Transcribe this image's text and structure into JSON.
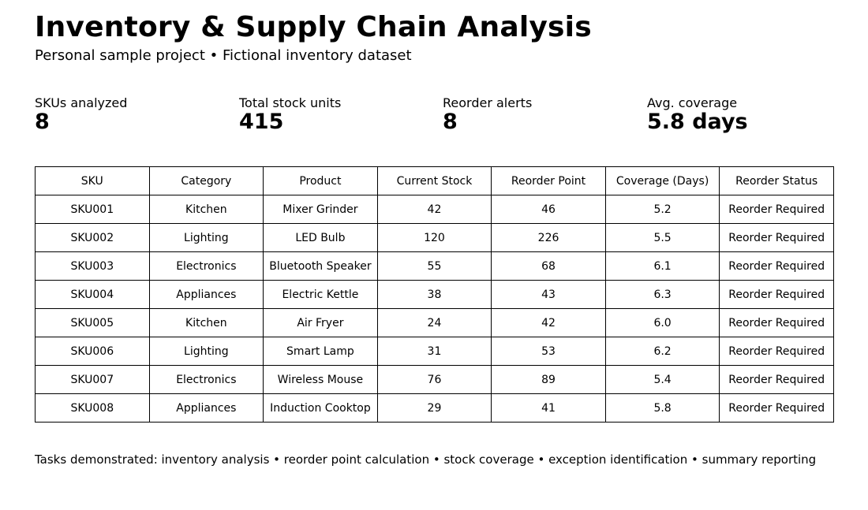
{
  "header": {
    "title": "Inventory & Supply Chain Analysis",
    "subtitle": "Personal sample project • Fictional inventory dataset"
  },
  "kpis": [
    {
      "label": "SKUs analyzed",
      "value": "8"
    },
    {
      "label": "Total stock units",
      "value": "415"
    },
    {
      "label": "Reorder alerts",
      "value": "8"
    },
    {
      "label": "Avg. coverage",
      "value": "5.8 days"
    }
  ],
  "table": {
    "columns": [
      "SKU",
      "Category",
      "Product",
      "Current Stock",
      "Reorder Point",
      "Coverage (Days)",
      "Reorder Status"
    ],
    "rows": [
      [
        "SKU001",
        "Kitchen",
        "Mixer Grinder",
        "42",
        "46",
        "5.2",
        "Reorder Required"
      ],
      [
        "SKU002",
        "Lighting",
        "LED Bulb",
        "120",
        "226",
        "5.5",
        "Reorder Required"
      ],
      [
        "SKU003",
        "Electronics",
        "Bluetooth Speaker",
        "55",
        "68",
        "6.1",
        "Reorder Required"
      ],
      [
        "SKU004",
        "Appliances",
        "Electric Kettle",
        "38",
        "43",
        "6.3",
        "Reorder Required"
      ],
      [
        "SKU005",
        "Kitchen",
        "Air Fryer",
        "24",
        "42",
        "6.0",
        "Reorder Required"
      ],
      [
        "SKU006",
        "Lighting",
        "Smart Lamp",
        "31",
        "53",
        "6.2",
        "Reorder Required"
      ],
      [
        "SKU007",
        "Electronics",
        "Wireless Mouse",
        "76",
        "89",
        "5.4",
        "Reorder Required"
      ],
      [
        "SKU008",
        "Appliances",
        "Induction Cooktop",
        "29",
        "41",
        "5.8",
        "Reorder Required"
      ]
    ]
  },
  "footer": {
    "text": "Tasks demonstrated: inventory analysis • reorder point calculation • stock coverage • exception identification • summary reporting"
  }
}
